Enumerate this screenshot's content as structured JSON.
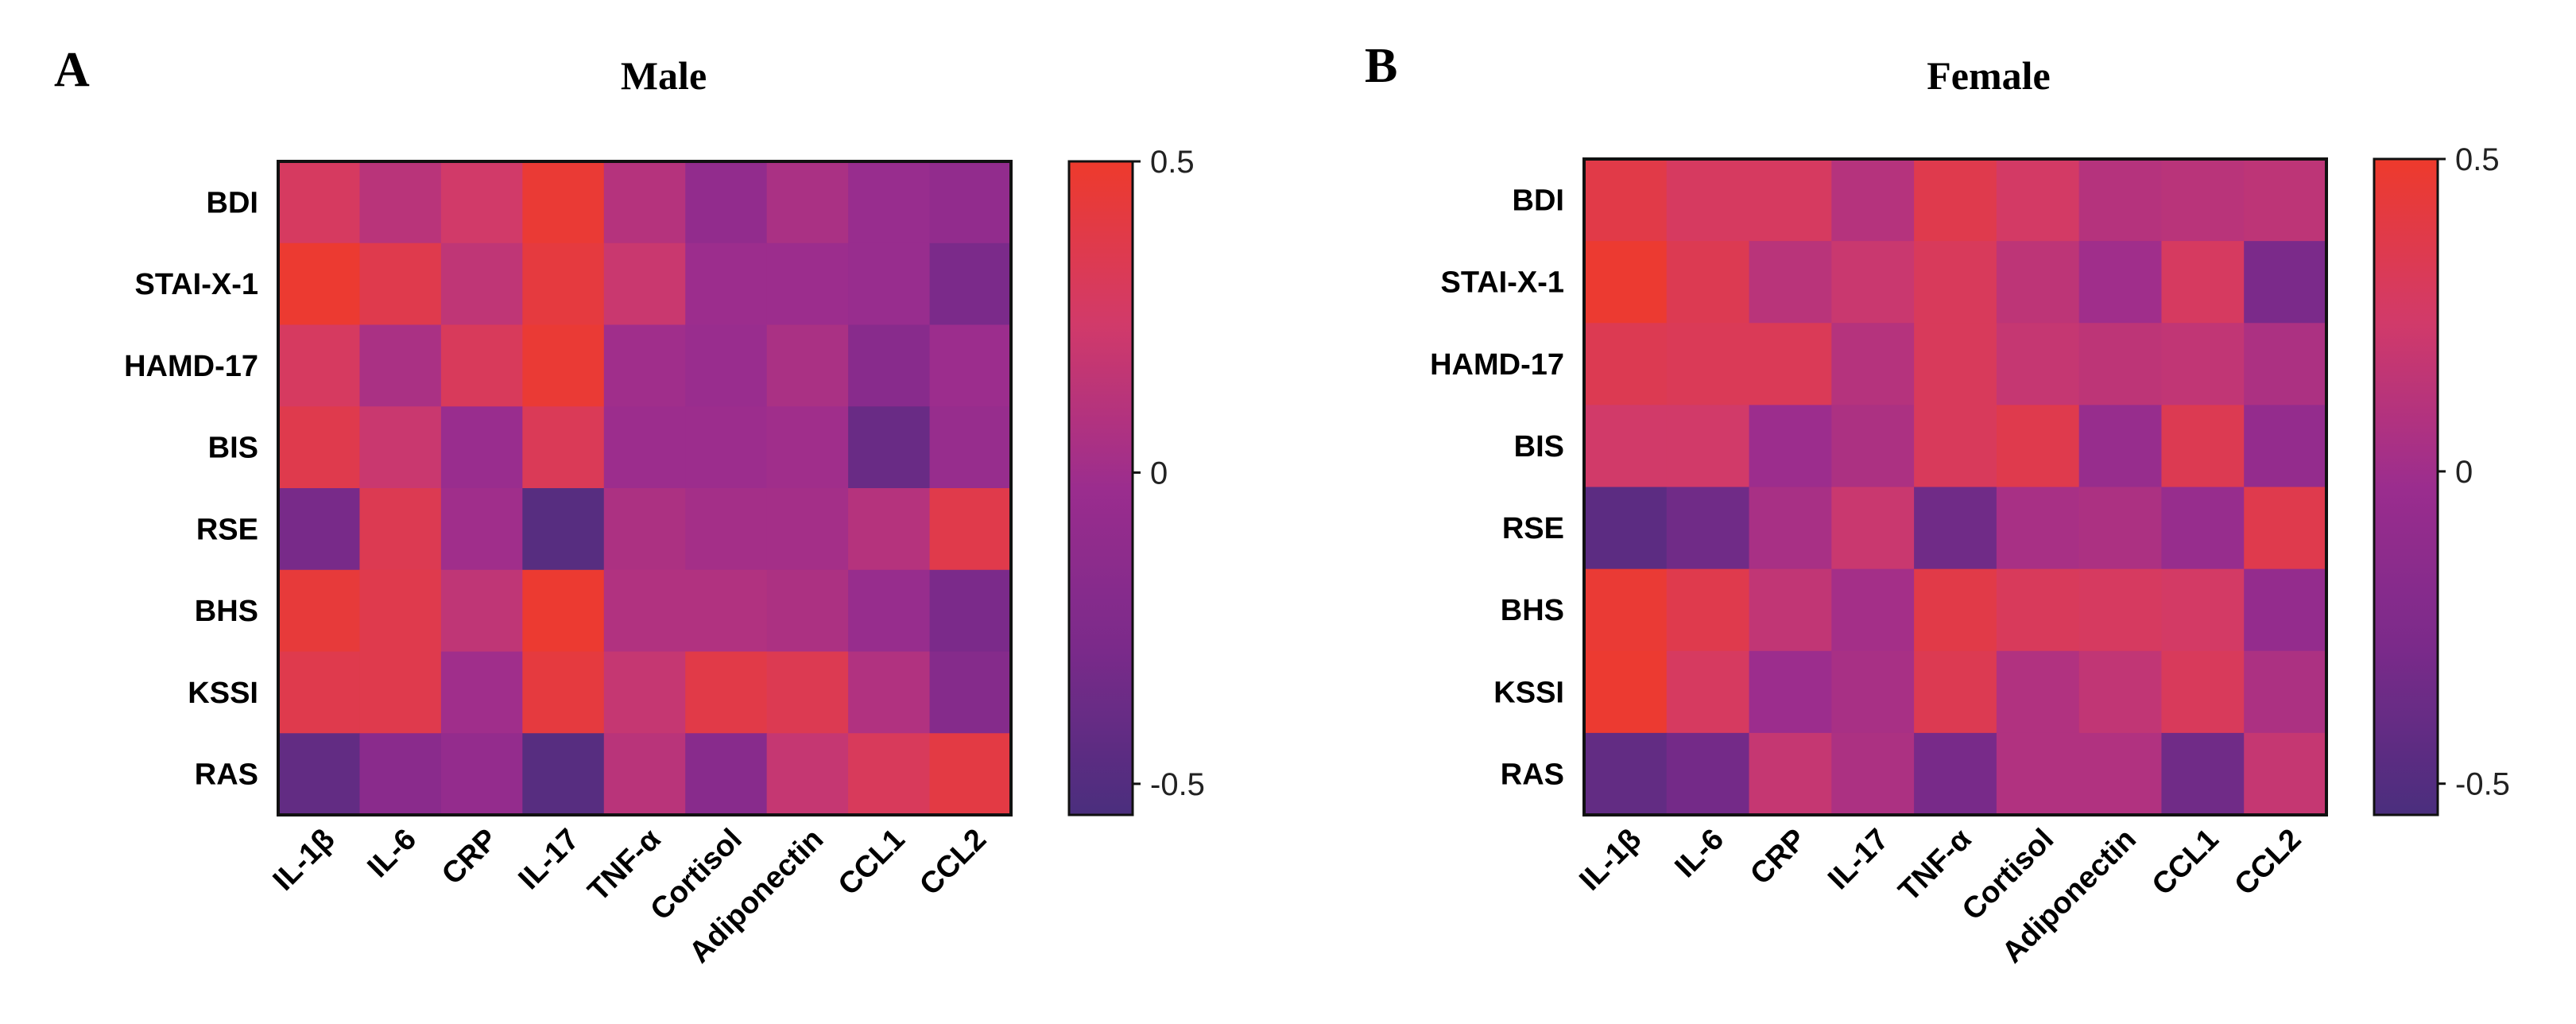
{
  "chart_data": [
    {
      "type": "heatmap",
      "panel_label": "A",
      "title": "Male",
      "rows": [
        "BDI",
        "STAI-X-1",
        "HAMD-17",
        "BIS",
        "RSE",
        "BHS",
        "KSSI",
        "RAS"
      ],
      "columns": [
        "IL-1β",
        "IL-6",
        "CRP",
        "IL-17",
        "TNF-α",
        "Cortisol",
        "Adiponectin",
        "CCL1",
        "CCL2"
      ],
      "values": [
        [
          0.28,
          0.12,
          0.24,
          0.46,
          0.1,
          -0.1,
          0.05,
          -0.05,
          -0.1
        ],
        [
          0.48,
          0.36,
          0.15,
          0.42,
          0.2,
          -0.02,
          -0.02,
          -0.05,
          -0.28
        ],
        [
          0.28,
          0.05,
          0.3,
          0.46,
          0.0,
          -0.04,
          0.05,
          -0.18,
          -0.02
        ],
        [
          0.36,
          0.2,
          -0.04,
          0.32,
          -0.02,
          -0.02,
          0.0,
          -0.38,
          -0.06
        ],
        [
          -0.3,
          0.34,
          0.0,
          -0.48,
          0.06,
          0.02,
          0.02,
          0.1,
          0.37
        ],
        [
          0.44,
          0.36,
          0.15,
          0.48,
          0.08,
          0.08,
          0.06,
          -0.06,
          -0.28
        ],
        [
          0.36,
          0.36,
          0.0,
          0.42,
          0.18,
          0.38,
          0.34,
          0.08,
          -0.2
        ],
        [
          -0.42,
          -0.16,
          -0.08,
          -0.48,
          0.12,
          -0.18,
          0.18,
          0.3,
          0.4
        ]
      ],
      "colorbar": {
        "min": -0.55,
        "max": 0.5,
        "ticks": [
          0.5,
          0,
          -0.5
        ],
        "tick_labels": [
          "0.5",
          "0",
          "-0.5"
        ]
      }
    },
    {
      "type": "heatmap",
      "panel_label": "B",
      "title": "Female",
      "rows": [
        "BDI",
        "STAI-X-1",
        "HAMD-17",
        "BIS",
        "RSE",
        "BHS",
        "KSSI",
        "RAS"
      ],
      "columns": [
        "IL-1β",
        "IL-6",
        "CRP",
        "IL-17",
        "TNF-α",
        "Cortisol",
        "Adiponectin",
        "CCL1",
        "CCL2"
      ],
      "values": [
        [
          0.38,
          0.28,
          0.28,
          0.1,
          0.36,
          0.26,
          0.1,
          0.12,
          0.14
        ],
        [
          0.48,
          0.34,
          0.12,
          0.2,
          0.3,
          0.14,
          0.0,
          0.28,
          -0.28
        ],
        [
          0.34,
          0.32,
          0.32,
          0.1,
          0.3,
          0.18,
          0.14,
          0.16,
          0.06
        ],
        [
          0.24,
          0.24,
          -0.02,
          0.06,
          0.3,
          0.36,
          -0.06,
          0.34,
          -0.08
        ],
        [
          -0.45,
          -0.34,
          0.04,
          0.2,
          -0.34,
          0.04,
          0.06,
          -0.06,
          0.36
        ],
        [
          0.46,
          0.36,
          0.16,
          0.02,
          0.38,
          0.3,
          0.28,
          0.26,
          -0.08
        ],
        [
          0.48,
          0.28,
          -0.02,
          0.04,
          0.34,
          0.08,
          0.16,
          0.3,
          0.06
        ],
        [
          -0.42,
          -0.32,
          0.18,
          0.06,
          -0.3,
          0.08,
          0.08,
          -0.34,
          0.18
        ]
      ],
      "colorbar": {
        "min": -0.55,
        "max": 0.5,
        "ticks": [
          0.5,
          0,
          -0.5
        ],
        "tick_labels": [
          "0.5",
          "0",
          "-0.5"
        ]
      }
    }
  ],
  "colors": {
    "colormap": [
      "#4a2e7d",
      "#7a2a8a",
      "#9b2d8e",
      "#d13a6a",
      "#ee3a2c"
    ],
    "frame": "#111111"
  }
}
